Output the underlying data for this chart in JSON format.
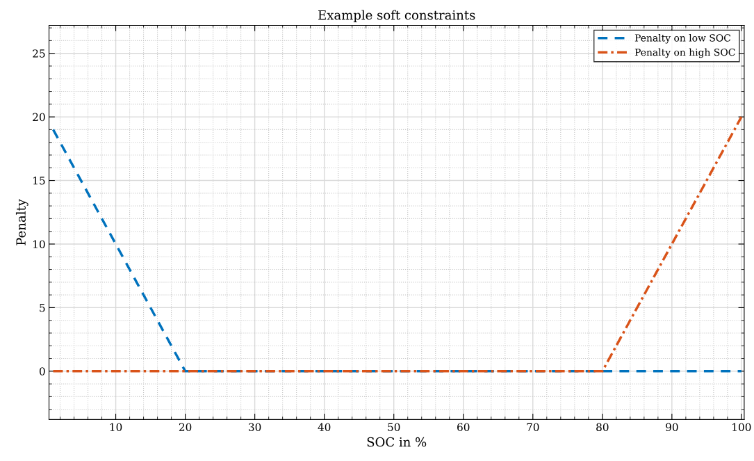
{
  "chart_data": {
    "type": "line",
    "title": "Example soft constraints",
    "xlabel": "SOC in %",
    "ylabel": "Penalty",
    "series": [
      {
        "name": "Penalty on low SOC",
        "color": "#0072bd",
        "x": [
          1,
          20,
          100
        ],
        "values": [
          19,
          0,
          0
        ],
        "line_style": "dashed"
      },
      {
        "name": "Penalty on high SOC",
        "color": "#d95319",
        "x": [
          1,
          80,
          100
        ],
        "values": [
          0,
          0,
          20
        ],
        "line_style": "dashdot"
      }
    ],
    "xlim": [
      0.4,
      100.4
    ],
    "xticks": [
      10,
      20,
      30,
      40,
      50,
      60,
      70,
      80,
      90,
      100
    ],
    "ylim": [
      -3.8,
      27.2
    ],
    "yticks": [
      0,
      5,
      10,
      15,
      20,
      25
    ],
    "grid": true,
    "legend": "top right",
    "marker": "none"
  }
}
